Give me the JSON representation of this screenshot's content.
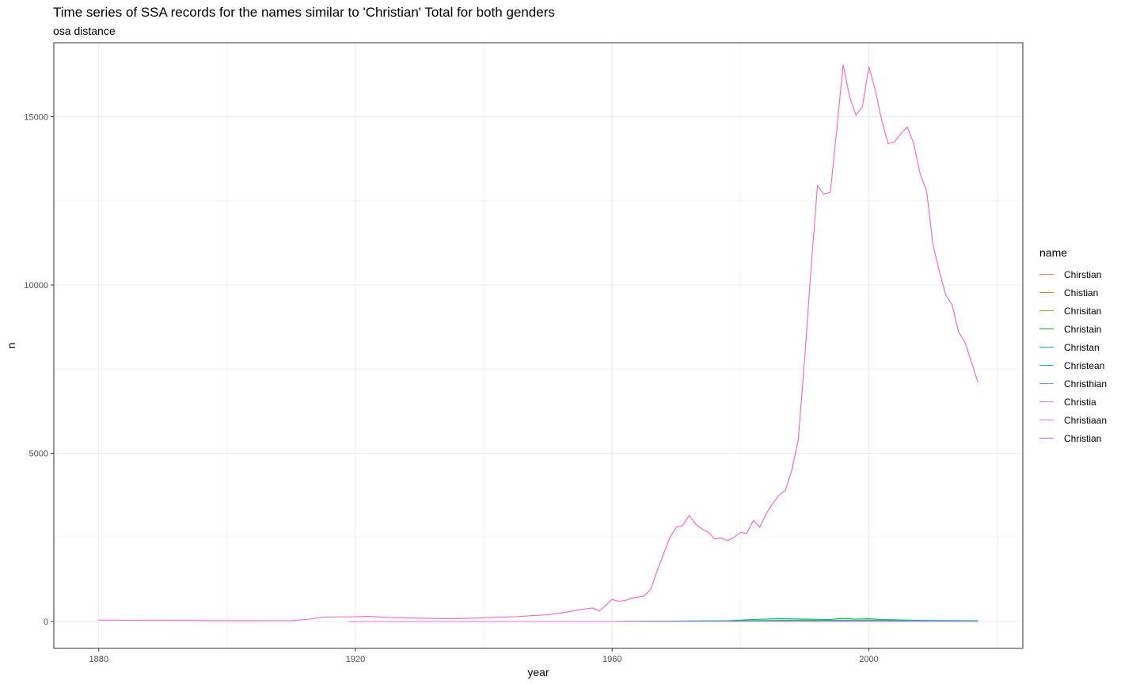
{
  "title": "Time series of SSA records for the names similar to 'Christian' Total for both genders",
  "subtitle": "osa distance",
  "chart_data": {
    "type": "line",
    "title": "Time series of SSA records for the names similar to 'Christian' Total for both genders",
    "subtitle": "osa distance",
    "xlabel": "year",
    "ylabel": "n",
    "xlim": [
      1873,
      2024
    ],
    "ylim": [
      -800,
      17200
    ],
    "x_ticks": [
      1880,
      1920,
      1960,
      2000
    ],
    "y_ticks": [
      0,
      5000,
      10000,
      15000
    ],
    "grid": true,
    "legend_title": "name",
    "legend_position": "right",
    "series": [
      {
        "name": "Chirstian",
        "color": "#F8766D",
        "x": [
          1919,
          1960,
          1980,
          2000,
          2017
        ],
        "values": [
          0,
          0,
          5,
          8,
          6
        ]
      },
      {
        "name": "Chistian",
        "color": "#D39200",
        "x": [
          1919,
          1960,
          1980,
          2000,
          2017
        ],
        "values": [
          0,
          0,
          8,
          20,
          10
        ]
      },
      {
        "name": "Chrisitan",
        "color": "#93AA00",
        "x": [
          1919,
          1960,
          1980,
          2000,
          2017
        ],
        "values": [
          0,
          0,
          15,
          40,
          15
        ]
      },
      {
        "name": "Christain",
        "color": "#00BA38",
        "x": [
          1919,
          1960,
          1978,
          1982,
          1986,
          1990,
          1994,
          1996,
          1998,
          2000,
          2002,
          2004,
          2008,
          2017
        ],
        "values": [
          0,
          0,
          20,
          60,
          80,
          70,
          60,
          90,
          70,
          80,
          60,
          50,
          30,
          20
        ]
      },
      {
        "name": "Christan",
        "color": "#00C19F",
        "x": [
          1919,
          1960,
          1980,
          1990,
          2000,
          2010,
          2017
        ],
        "values": [
          0,
          0,
          20,
          40,
          30,
          20,
          15
        ]
      },
      {
        "name": "Christean",
        "color": "#00B9E3",
        "x": [
          1919,
          1960,
          1980,
          2000,
          2017
        ],
        "values": [
          0,
          0,
          0,
          0,
          0
        ]
      },
      {
        "name": "Christhian",
        "color": "#619CFF",
        "x": [
          1919,
          1960,
          1980,
          2000,
          2017
        ],
        "values": [
          0,
          0,
          0,
          5,
          0
        ]
      },
      {
        "name": "Christia",
        "color": "#DB72FB",
        "x": [
          1919,
          1960,
          1980,
          2000,
          2017
        ],
        "values": [
          0,
          0,
          0,
          0,
          0
        ]
      },
      {
        "name": "Christiaan",
        "color": "#DB72FB",
        "x": [
          1919,
          1960,
          1980,
          2000,
          2017
        ],
        "values": [
          0,
          0,
          0,
          0,
          0
        ]
      },
      {
        "name": "Christian",
        "color": "#FF61C3",
        "x": [
          1880,
          1885,
          1890,
          1895,
          1900,
          1905,
          1910,
          1913,
          1915,
          1920,
          1922,
          1925,
          1930,
          1935,
          1940,
          1945,
          1948,
          1950,
          1953,
          1955,
          1957,
          1958,
          1960,
          1961,
          1962,
          1963,
          1964,
          1965,
          1966,
          1967,
          1968,
          1969,
          1970,
          1971,
          1972,
          1973,
          1974,
          1975,
          1976,
          1977,
          1978,
          1979,
          1980,
          1981,
          1982,
          1983,
          1984,
          1985,
          1986,
          1987,
          1988,
          1989,
          1990,
          1991,
          1992,
          1993,
          1994,
          1995,
          1996,
          1997,
          1998,
          1999,
          2000,
          2001,
          2002,
          2003,
          2004,
          2005,
          2006,
          2007,
          2008,
          2009,
          2010,
          2011,
          2012,
          2013,
          2014,
          2015,
          2016,
          2017
        ],
        "values": [
          40,
          35,
          30,
          30,
          20,
          20,
          25,
          70,
          130,
          140,
          150,
          120,
          100,
          80,
          110,
          140,
          180,
          200,
          280,
          350,
          400,
          310,
          650,
          600,
          620,
          690,
          720,
          760,
          950,
          1500,
          2000,
          2500,
          2800,
          2850,
          3150,
          2900,
          2750,
          2650,
          2450,
          2480,
          2400,
          2500,
          2650,
          2620,
          3000,
          2800,
          3200,
          3500,
          3750,
          3900,
          4500,
          5400,
          7800,
          10500,
          12950,
          12700,
          12750,
          14600,
          16550,
          15600,
          15050,
          15300,
          16500,
          15800,
          14900,
          14200,
          14250,
          14500,
          14700,
          14200,
          13300,
          12800,
          11200,
          10400,
          9700,
          9400,
          8600,
          8300,
          7700,
          7100
        ]
      }
    ]
  }
}
